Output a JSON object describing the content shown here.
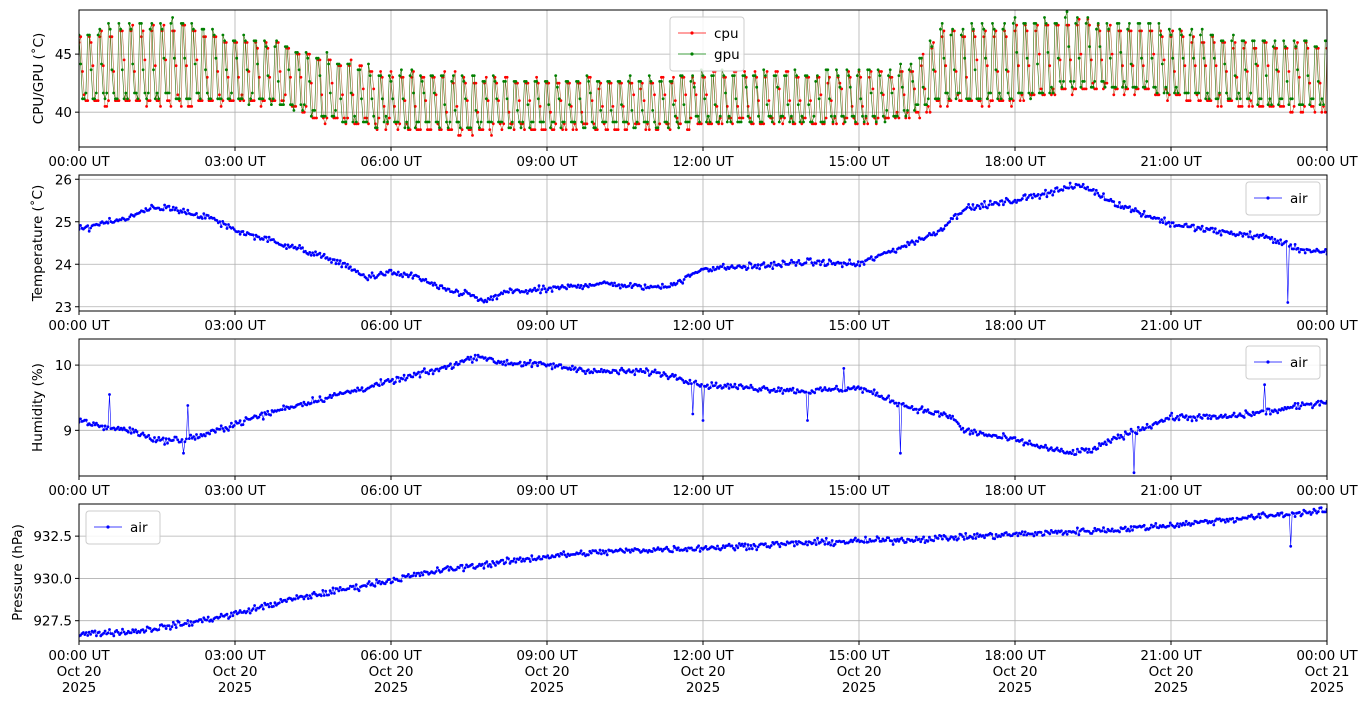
{
  "chart_data": [
    {
      "type": "line",
      "ylabel": "CPU/GPU (˚C)",
      "ylim": [
        37,
        48.8
      ],
      "yticks": [
        40,
        45
      ],
      "xticks": [
        "00:00 UT",
        "03:00 UT",
        "06:00 UT",
        "09:00 UT",
        "12:00 UT",
        "15:00 UT",
        "18:00 UT",
        "21:00 UT",
        "00:00 UT"
      ],
      "x_range_hours": [
        0,
        24
      ],
      "grid": true,
      "legend": {
        "position": "top-center"
      },
      "series": [
        {
          "name": "cpu",
          "color": "#ff0000",
          "x_hours": [
            0,
            1,
            2,
            3,
            4,
            4.6,
            5,
            6,
            7,
            7.6,
            8,
            9,
            10,
            11,
            12,
            13,
            14,
            15,
            16,
            16.6,
            17,
            18,
            19,
            20,
            21,
            22,
            23,
            24
          ],
          "low": [
            40.5,
            40.5,
            40.5,
            40.5,
            40.5,
            39,
            39,
            38.5,
            38,
            37.7,
            38.3,
            38.3,
            38.3,
            38.3,
            38.8,
            38.8,
            38.8,
            38.8,
            39.3,
            40.5,
            40.5,
            40.5,
            41.5,
            41.5,
            41,
            40.5,
            40,
            40
          ],
          "high": [
            46.5,
            47.5,
            47.5,
            46.5,
            46,
            45,
            44.5,
            43.5,
            43.5,
            43,
            43,
            43,
            43,
            43,
            43.5,
            43.5,
            43.5,
            43.5,
            44,
            47,
            47,
            47.5,
            48,
            47.5,
            47,
            46.5,
            46,
            46
          ]
        },
        {
          "name": "gpu",
          "color": "#008000",
          "x_hours": [
            0,
            1,
            2,
            3,
            4,
            4.6,
            5,
            6,
            7,
            7.6,
            8,
            9,
            10,
            11,
            12,
            13,
            14,
            15,
            16,
            16.6,
            17,
            18,
            19,
            20,
            21,
            22,
            23,
            24
          ],
          "low": [
            40.8,
            40.8,
            40.8,
            40.8,
            40.3,
            39.3,
            39,
            38.5,
            38.5,
            38.3,
            38.5,
            38.5,
            38.5,
            38.5,
            38.8,
            38.8,
            38.8,
            38.8,
            39.5,
            40.8,
            40.8,
            40.8,
            41.8,
            41.8,
            41.3,
            40.8,
            40.3,
            40.3
          ],
          "high": [
            46.8,
            47.8,
            47.8,
            46.5,
            46,
            45,
            44.5,
            43.5,
            43.5,
            43,
            43,
            43,
            43,
            43,
            43.5,
            43.5,
            43.5,
            43.5,
            44,
            47.3,
            47.3,
            47.8,
            48.3,
            47.8,
            47.3,
            46.8,
            46.3,
            46.3
          ]
        }
      ]
    },
    {
      "type": "line",
      "ylabel": "Temperature (˚C)",
      "ylim": [
        22.9,
        26.1
      ],
      "yticks": [
        23,
        24,
        25,
        26
      ],
      "xticks": [
        "00:00 UT",
        "03:00 UT",
        "06:00 UT",
        "09:00 UT",
        "12:00 UT",
        "15:00 UT",
        "18:00 UT",
        "21:00 UT",
        "00:00 UT"
      ],
      "x_range_hours": [
        0,
        24
      ],
      "grid": true,
      "legend": {
        "position": "top-right"
      },
      "series": [
        {
          "name": "air",
          "color": "#0000ff",
          "x_hours": [
            0,
            0.5,
            1,
            1.4,
            1.8,
            2.5,
            3,
            4,
            5,
            5.5,
            6,
            6.5,
            7,
            7.5,
            7.8,
            8.2,
            9,
            10,
            11,
            11.5,
            12,
            13,
            14,
            15,
            16,
            16.5,
            17,
            18,
            19,
            19.3,
            20,
            21,
            22,
            22.8,
            23.5,
            24
          ],
          "y": [
            24.8,
            25.0,
            25.1,
            25.35,
            25.3,
            25.1,
            24.8,
            24.45,
            24.05,
            23.7,
            23.8,
            23.7,
            23.4,
            23.3,
            23.1,
            23.35,
            23.4,
            23.55,
            23.45,
            23.55,
            23.9,
            23.95,
            24.05,
            24.0,
            24.5,
            24.75,
            25.3,
            25.5,
            25.8,
            25.85,
            25.4,
            24.95,
            24.75,
            24.65,
            24.35,
            24.25
          ]
        }
      ]
    },
    {
      "type": "line",
      "ylabel": "Humidity (%)",
      "ylim": [
        8.3,
        10.4
      ],
      "yticks": [
        9,
        10
      ],
      "xticks": [
        "00:00 UT",
        "03:00 UT",
        "06:00 UT",
        "09:00 UT",
        "12:00 UT",
        "15:00 UT",
        "18:00 UT",
        "21:00 UT",
        "00:00 UT"
      ],
      "x_range_hours": [
        0,
        24
      ],
      "grid": true,
      "legend": {
        "position": "top-right"
      },
      "series": [
        {
          "name": "air",
          "color": "#0000ff",
          "x_hours": [
            0,
            0.5,
            1,
            1.5,
            2,
            2.5,
            3,
            4,
            5,
            6,
            7,
            7.7,
            8,
            9,
            10,
            11,
            11.6,
            12,
            13,
            14,
            15,
            16,
            16.8,
            17,
            18,
            19,
            19.5,
            20,
            21,
            22,
            23,
            24
          ],
          "y": [
            9.15,
            9.05,
            9.0,
            8.85,
            8.85,
            8.95,
            9.1,
            9.35,
            9.55,
            9.75,
            9.95,
            10.15,
            10.05,
            10.0,
            9.9,
            9.9,
            9.8,
            9.7,
            9.65,
            9.6,
            9.65,
            9.35,
            9.2,
            9.0,
            8.85,
            8.65,
            8.7,
            8.9,
            9.2,
            9.2,
            9.3,
            9.45
          ]
        }
      ]
    },
    {
      "type": "line",
      "ylabel": "Pressure (hPa)",
      "ylim": [
        926.3,
        934.4
      ],
      "yticks": [
        927.5,
        930.0,
        932.5
      ],
      "xticks": [
        "00:00 UT\nOct 20\n2025",
        "03:00 UT\nOct 20\n2025",
        "06:00 UT\nOct 20\n2025",
        "09:00 UT\nOct 20\n2025",
        "12:00 UT\nOct 20\n2025",
        "15:00 UT\nOct 20\n2025",
        "18:00 UT\nOct 20\n2025",
        "21:00 UT\nOct 20\n2025",
        "00:00 UT\nOct 21\n2025"
      ],
      "x_range_hours": [
        0,
        24
      ],
      "grid": true,
      "legend": {
        "position": "top-left"
      },
      "series": [
        {
          "name": "air",
          "color": "#0000ff",
          "x_hours": [
            0,
            0.5,
            1,
            2,
            3,
            4,
            5,
            6,
            7,
            8,
            9,
            10,
            11,
            12,
            13,
            14,
            15,
            16,
            17,
            18,
            19,
            20,
            21,
            22,
            23,
            24
          ],
          "y": [
            926.7,
            926.8,
            926.85,
            927.3,
            927.9,
            928.7,
            929.3,
            929.9,
            930.5,
            930.9,
            931.3,
            931.55,
            931.7,
            931.8,
            931.95,
            932.1,
            932.2,
            932.3,
            932.45,
            932.6,
            932.75,
            932.9,
            933.15,
            933.45,
            933.75,
            934.0
          ]
        }
      ]
    }
  ]
}
